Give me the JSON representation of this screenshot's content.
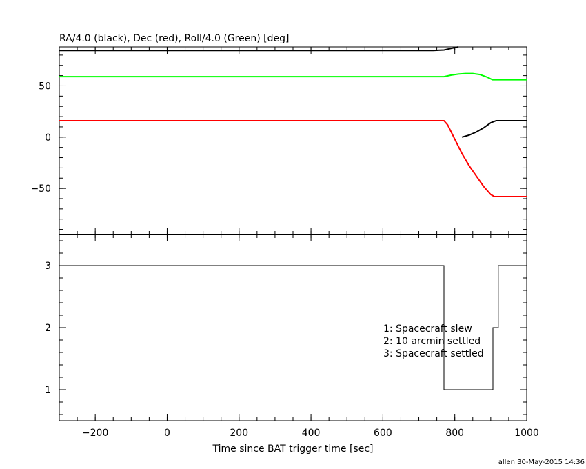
{
  "chart_data": [
    {
      "type": "line",
      "title": "RA/4.0 (black), Dec (red), Roll/4.0 (Green) [deg]",
      "xlim": [
        -300,
        1000
      ],
      "ylim": [
        -95,
        88
      ],
      "yticks": [
        -50,
        0,
        50
      ],
      "ytick_labels": [
        "−50",
        "0",
        "50"
      ],
      "grid": false,
      "series": [
        {
          "color": "#000000",
          "segments": [
            [
              [
                -300,
                84.5
              ],
              [
                360,
                84.5
              ],
              [
                640,
                84.5
              ],
              [
                740,
                84.5
              ],
              [
                770,
                85
              ],
              [
                790,
                86.5
              ],
              [
                810,
                88
              ]
            ],
            [
              [
                820,
                0
              ],
              [
                840,
                2
              ],
              [
                860,
                5
              ],
              [
                880,
                9
              ],
              [
                900,
                14
              ],
              [
                915,
                16
              ],
              [
                1000,
                16
              ]
            ]
          ]
        },
        {
          "color": "#ff0000",
          "segments": [
            [
              [
                -300,
                16
              ],
              [
                360,
                16
              ],
              [
                770,
                16
              ],
              [
                780,
                12
              ],
              [
                800,
                -2
              ],
              [
                820,
                -16
              ],
              [
                840,
                -28
              ],
              [
                860,
                -38
              ],
              [
                880,
                -48
              ],
              [
                900,
                -56
              ],
              [
                910,
                -58
              ],
              [
                1000,
                -58
              ]
            ]
          ]
        },
        {
          "color": "#00ff00",
          "segments": [
            [
              [
                -300,
                59
              ],
              [
                360,
                59
              ],
              [
                770,
                59
              ],
              [
                790,
                60.5
              ],
              [
                810,
                61.5
              ],
              [
                830,
                62
              ],
              [
                850,
                62
              ],
              [
                870,
                61
              ],
              [
                890,
                58.5
              ],
              [
                905,
                56
              ],
              [
                1000,
                56
              ]
            ]
          ]
        }
      ]
    },
    {
      "type": "line",
      "xlabel": "Time since BAT trigger time [sec]",
      "xlim": [
        -300,
        1000
      ],
      "ylim": [
        0.5,
        3.5
      ],
      "xticks": [
        -200,
        0,
        200,
        400,
        600,
        800,
        1000
      ],
      "xtick_labels": [
        "−200",
        "0",
        "200",
        "400",
        "600",
        "800",
        "1000"
      ],
      "yticks": [
        1,
        2,
        3
      ],
      "ytick_labels": [
        "1",
        "2",
        "3"
      ],
      "grid": false,
      "series": [
        {
          "color": "#000000",
          "step": true,
          "values": [
            [
              -300,
              3
            ],
            [
              770,
              3
            ],
            [
              770,
              1
            ],
            [
              906,
              1
            ],
            [
              906,
              2
            ],
            [
              921,
              2
            ],
            [
              921,
              3
            ],
            [
              1000,
              3
            ]
          ]
        }
      ],
      "annotations": [
        "1: Spacecraft slew",
        "2: 10 arcmin settled",
        "3: Spacecraft settled"
      ]
    }
  ],
  "footer": "allen 30-May-2015 14:36"
}
